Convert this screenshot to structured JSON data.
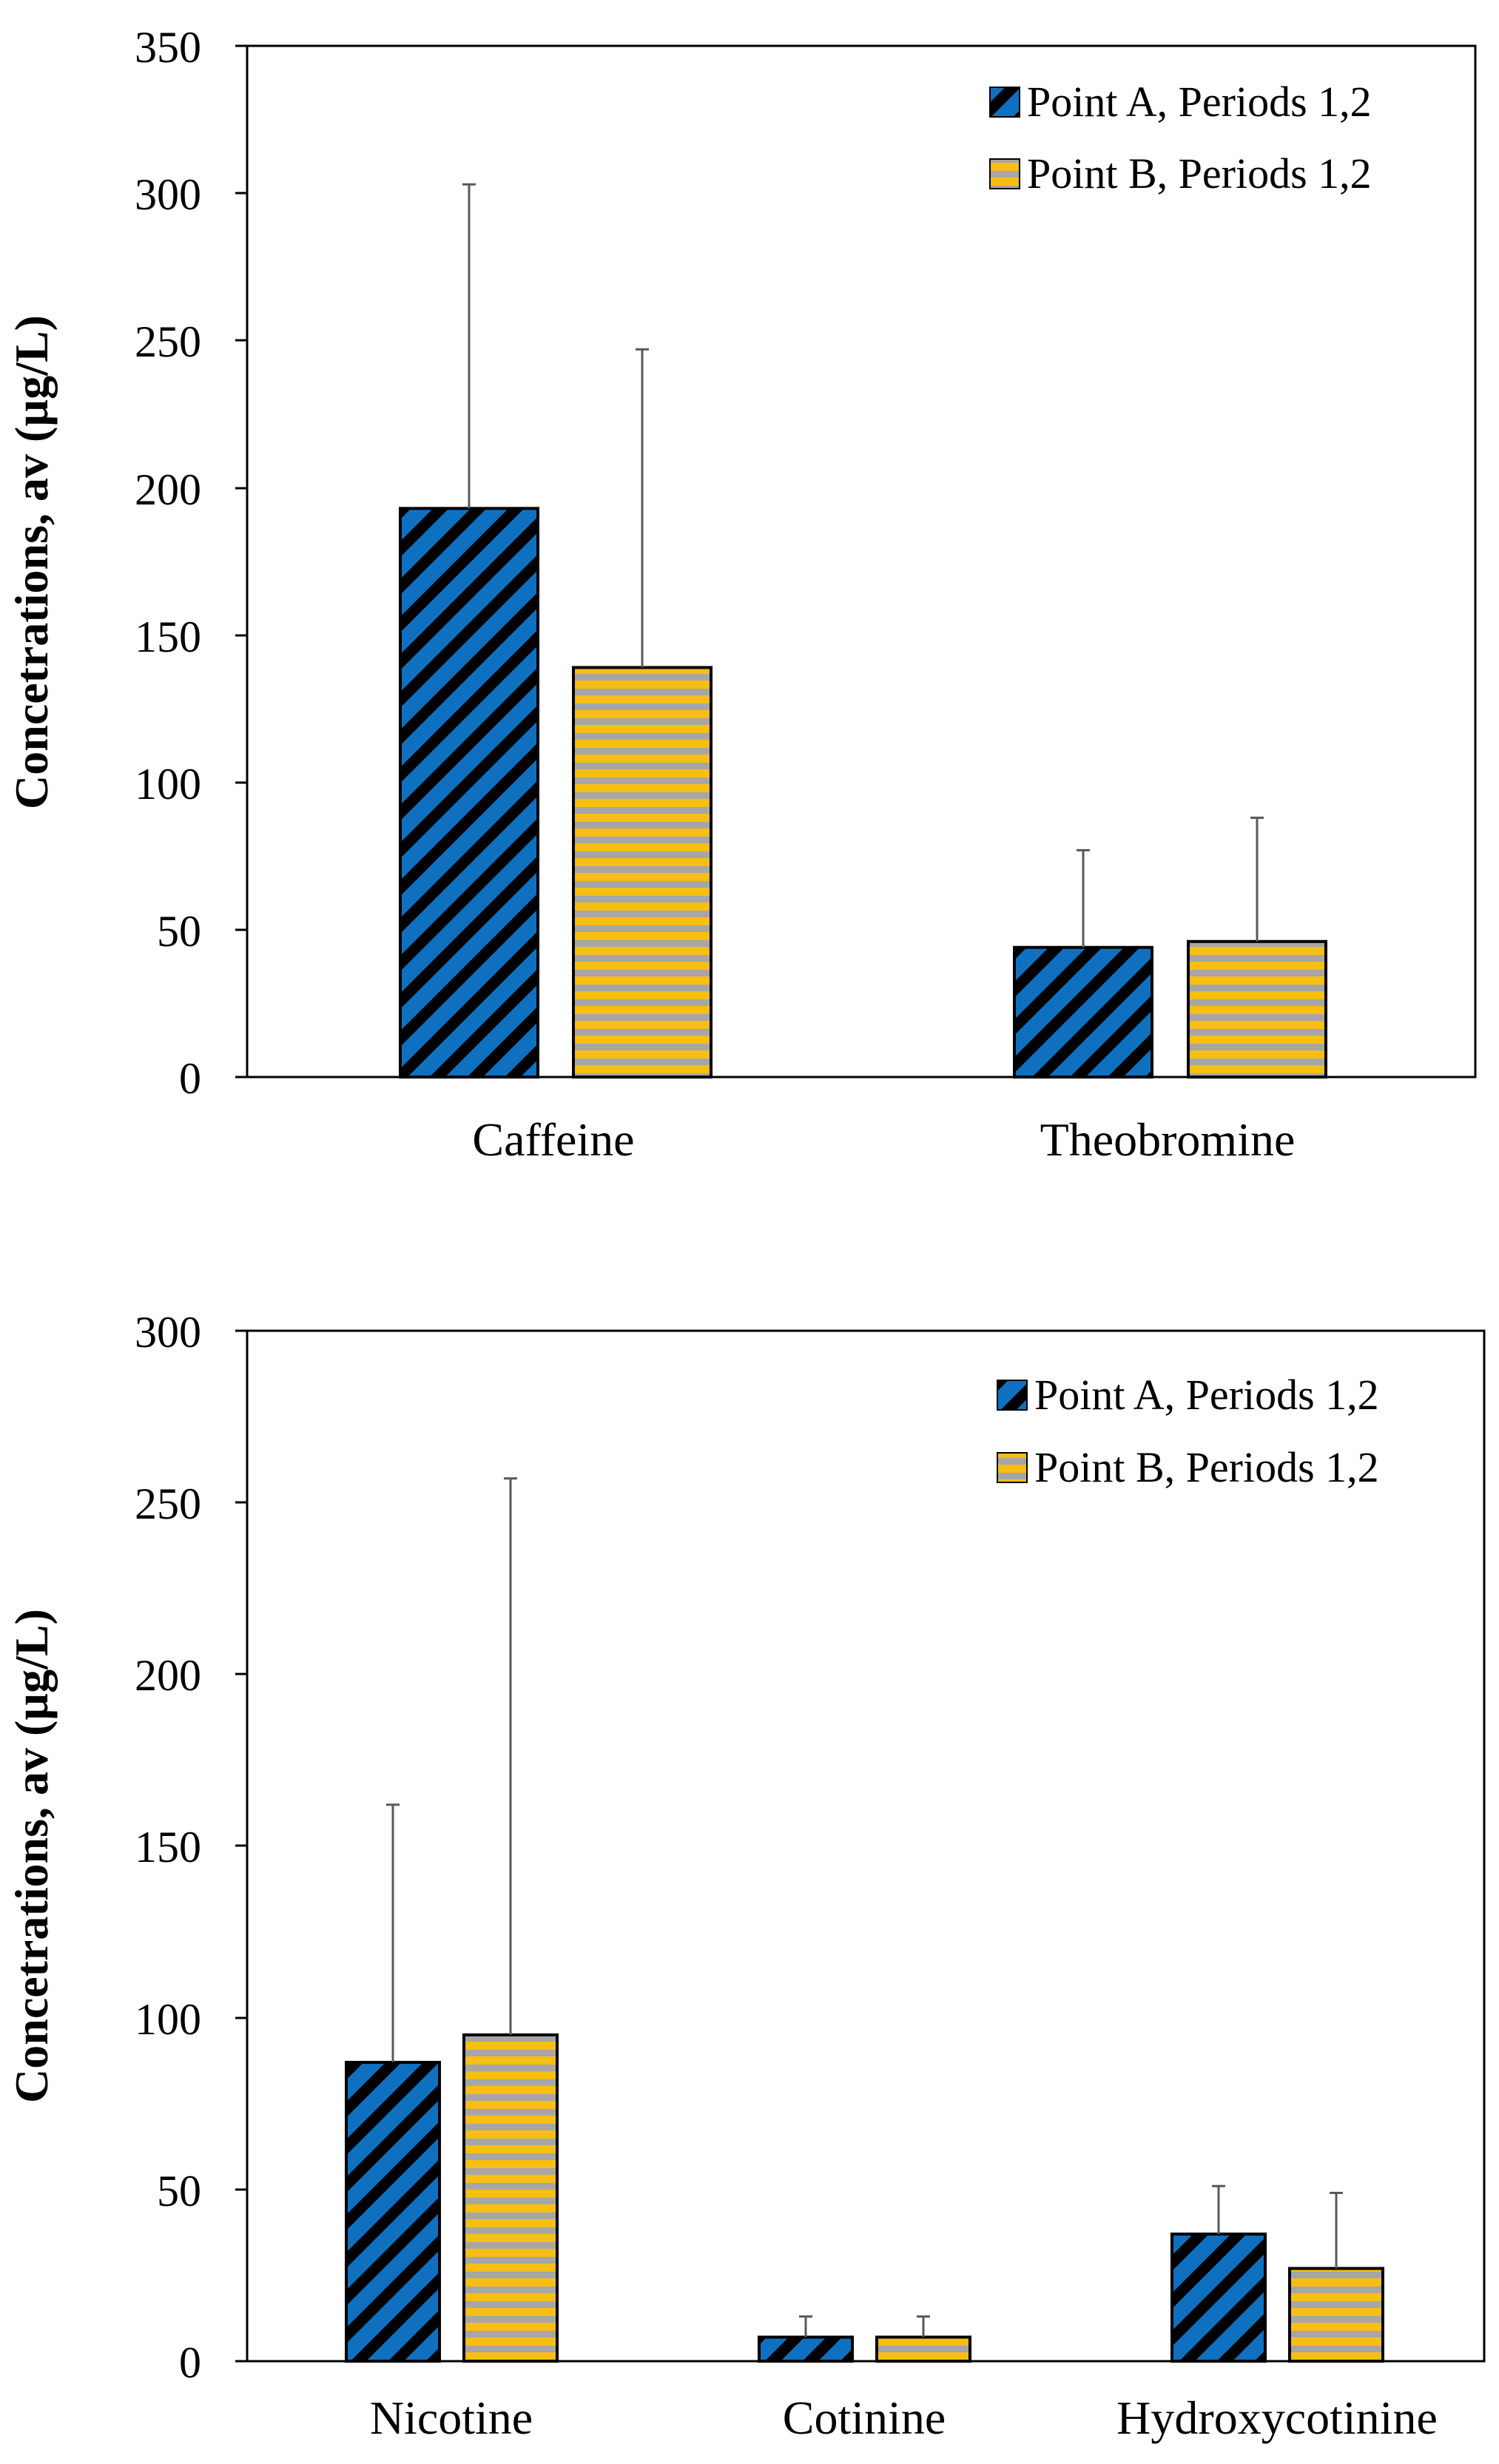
{
  "chart_data": [
    {
      "type": "bar",
      "ylabel": "Concetrations, av (µg/L)",
      "xlabel": "",
      "ylim": [
        0,
        350
      ],
      "yticks": [
        0,
        50,
        100,
        150,
        200,
        250,
        300,
        350
      ],
      "categories": [
        "Caffeine",
        "Theobromine"
      ],
      "legend_position": "top-right",
      "series": [
        {
          "name": "Point A, Periods 1,2",
          "values": [
            193,
            44
          ],
          "errors": [
            110,
            33
          ],
          "pattern": "diagonal-stripes",
          "colors": [
            "#1070C0",
            "#000000"
          ]
        },
        {
          "name": "Point B, Periods 1,2",
          "values": [
            139,
            46
          ],
          "errors": [
            108,
            42
          ],
          "pattern": "horizontal-stripes",
          "colors": [
            "#F7BE13",
            "#A6A6A6"
          ]
        }
      ]
    },
    {
      "type": "bar",
      "ylabel": "Concetrations, av (µg/L)",
      "xlabel": "",
      "ylim": [
        0,
        300
      ],
      "yticks": [
        0,
        50,
        100,
        150,
        200,
        250,
        300
      ],
      "categories": [
        "Nicotine",
        "Cotinine",
        "Hydroxycotinine"
      ],
      "legend_position": "top-right",
      "series": [
        {
          "name": "Point A, Periods 1,2",
          "values": [
            87,
            7,
            37
          ],
          "errors": [
            75,
            6,
            14
          ],
          "pattern": "diagonal-stripes",
          "colors": [
            "#1070C0",
            "#000000"
          ]
        },
        {
          "name": "Point B, Periods 1,2",
          "values": [
            95,
            7,
            27
          ],
          "errors": [
            162,
            6,
            22
          ],
          "pattern": "horizontal-stripes",
          "colors": [
            "#F7BE13",
            "#A6A6A6"
          ]
        }
      ]
    }
  ]
}
